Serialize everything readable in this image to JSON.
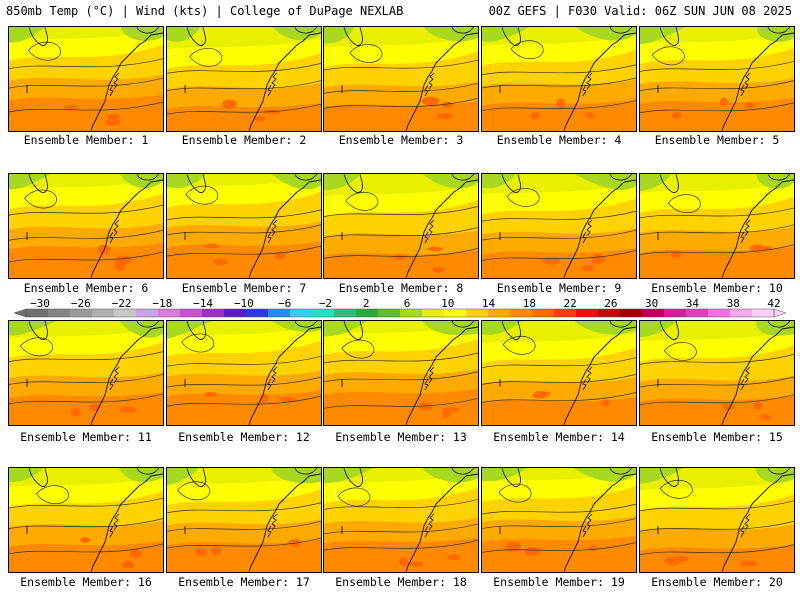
{
  "header": {
    "left": "850mb Temp (°C) | Wind (kts) | College of DuPage NEXLAB",
    "right": "00Z GEFS | F030 Valid: 06Z SUN JUN 08 2025"
  },
  "panels": [
    {
      "label": "Ensemble Member: 1"
    },
    {
      "label": "Ensemble Member: 2"
    },
    {
      "label": "Ensemble Member: 3"
    },
    {
      "label": "Ensemble Member: 4"
    },
    {
      "label": "Ensemble Member: 5"
    },
    {
      "label": "Ensemble Member: 6"
    },
    {
      "label": "Ensemble Member: 7"
    },
    {
      "label": "Ensemble Member: 8"
    },
    {
      "label": "Ensemble Member: 9"
    },
    {
      "label": "Ensemble Member: 10"
    },
    {
      "label": "Ensemble Member: 11"
    },
    {
      "label": "Ensemble Member: 12"
    },
    {
      "label": "Ensemble Member: 13"
    },
    {
      "label": "Ensemble Member: 14"
    },
    {
      "label": "Ensemble Member: 15"
    },
    {
      "label": "Ensemble Member: 16"
    },
    {
      "label": "Ensemble Member: 17"
    },
    {
      "label": "Ensemble Member: 18"
    },
    {
      "label": "Ensemble Member: 19"
    },
    {
      "label": "Ensemble Member: 20"
    }
  ],
  "colorbar": {
    "labels": [
      "−30",
      "−26",
      "−22",
      "−18",
      "−14",
      "−10",
      "−6",
      "−2",
      "2",
      "6",
      "10",
      "14",
      "18",
      "22",
      "26",
      "30",
      "34",
      "38",
      "42"
    ],
    "colors": [
      "#6f6f6f",
      "#858585",
      "#9b9b9b",
      "#b0b0b0",
      "#c6c6c6",
      "#c9a3e8",
      "#d77bdc",
      "#c94fd4",
      "#a12ad0",
      "#5a1cc8",
      "#2a3adc",
      "#1e8cf0",
      "#3fc8f0",
      "#38d8c0",
      "#2ebd7a",
      "#2aa838",
      "#5cc02a",
      "#a8d820",
      "#e8f000",
      "#ffff00",
      "#ffd200",
      "#ffaa00",
      "#ff8a00",
      "#ff6a00",
      "#ff3a10",
      "#e81010",
      "#c00808",
      "#980000",
      "#b40060",
      "#d0209a",
      "#e040c0",
      "#f070e0",
      "#f8a8f0",
      "#ffd0f8"
    ]
  }
}
